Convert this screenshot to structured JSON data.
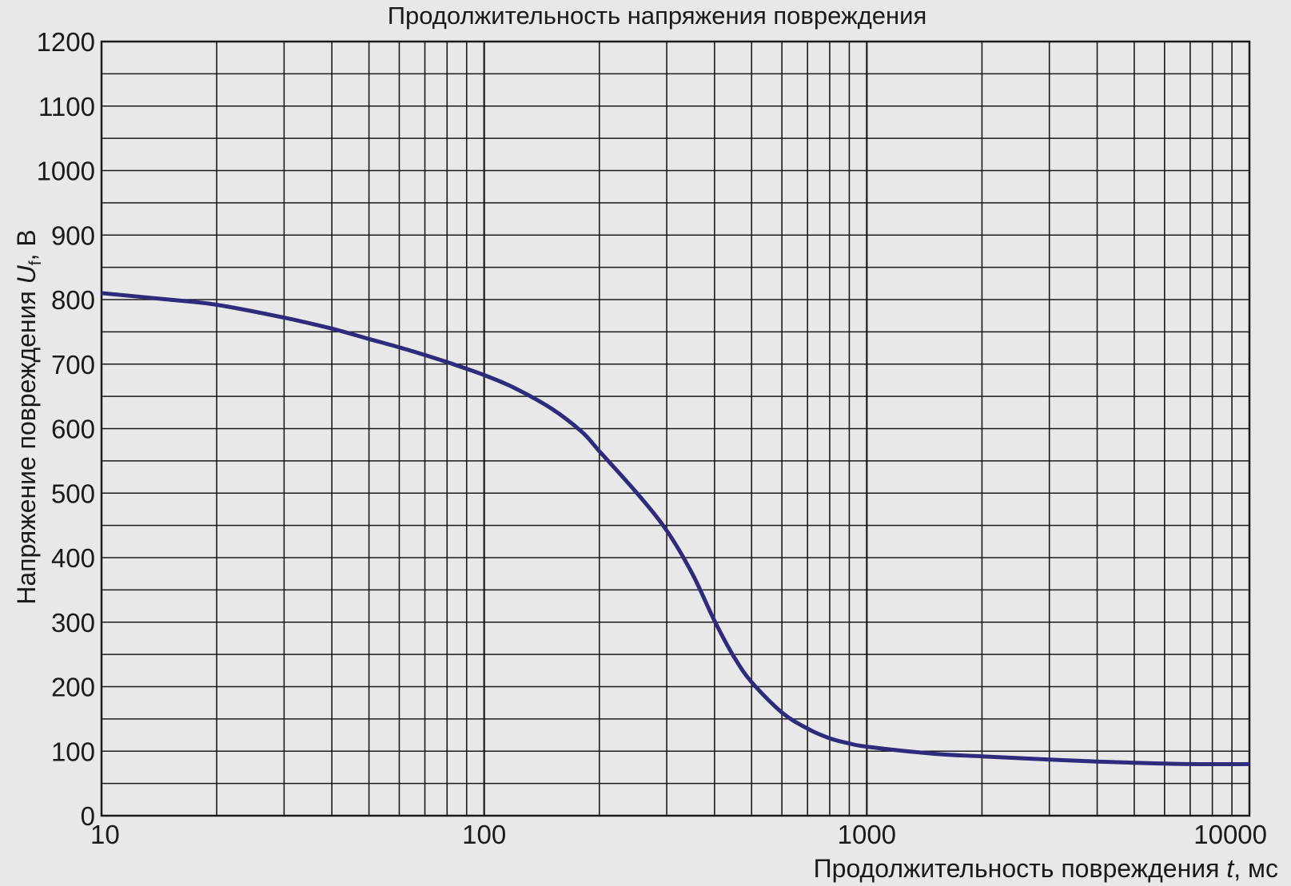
{
  "chart_data": {
    "type": "line",
    "title": "Продолжительность напряжения повреждения",
    "xlabel": {
      "prefix": "Продолжительность повреждения ",
      "var": "t",
      "suffix": ", мс"
    },
    "ylabel": {
      "prefix": "Напряжение повреждения ",
      "var": "U",
      "sub": "f",
      "suffix": ", В"
    },
    "x_scale": "log",
    "xlim": [
      10,
      10000
    ],
    "ylim": [
      0,
      1200
    ],
    "grid": true,
    "x_ticks": [
      "10",
      "100",
      "1000",
      "10000"
    ],
    "x_tick_values": [
      10,
      100,
      1000,
      10000
    ],
    "y_ticks": [
      "0",
      "100",
      "200",
      "300",
      "400",
      "500",
      "600",
      "700",
      "800",
      "900",
      "1000",
      "1100",
      "1200"
    ],
    "y_tick_values": [
      0,
      100,
      200,
      300,
      400,
      500,
      600,
      700,
      800,
      900,
      1000,
      1100,
      1200
    ],
    "y_minor_step": 50,
    "series": [
      {
        "color": "#2e2a7c",
        "x": [
          10,
          15,
          20,
          30,
          40,
          50,
          60,
          70,
          80,
          100,
          120,
          150,
          180,
          200,
          250,
          300,
          350,
          400,
          450,
          500,
          600,
          700,
          800,
          900,
          1000,
          1500,
          2000,
          3000,
          4000,
          5000,
          7000,
          10000
        ],
        "y": [
          810,
          800,
          792,
          772,
          755,
          739,
          726,
          714,
          703,
          683,
          663,
          631,
          595,
          565,
          501,
          442,
          375,
          302,
          246,
          207,
          160,
          135,
          120,
          112,
          107,
          96,
          92,
          87,
          84,
          82,
          80,
          80
        ]
      }
    ]
  }
}
